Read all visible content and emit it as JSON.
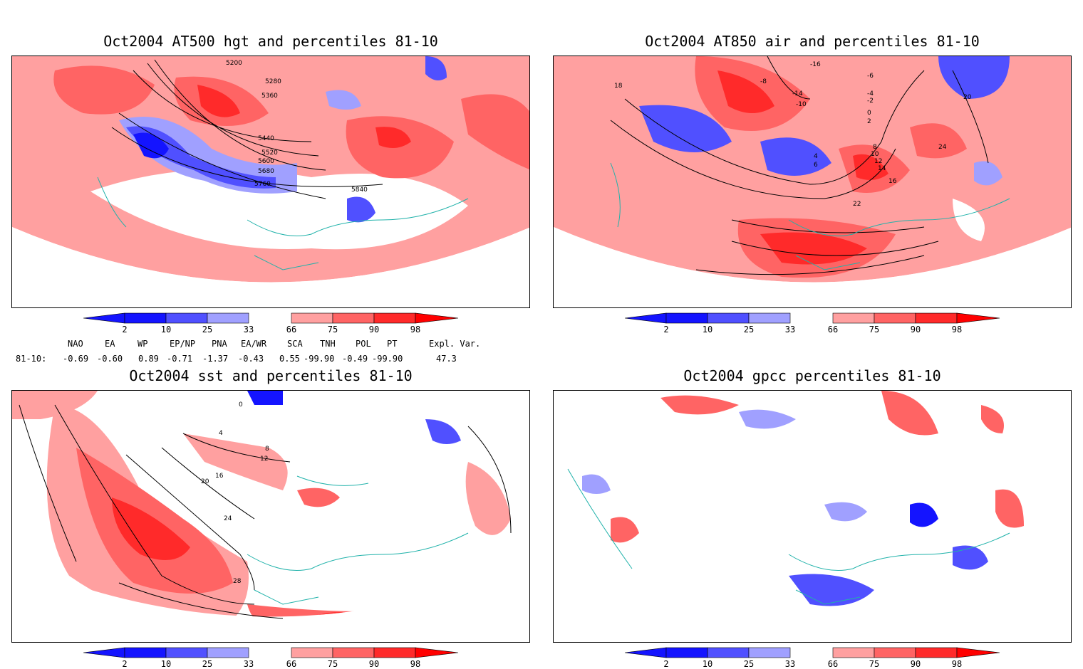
{
  "panels": [
    {
      "id": "p1",
      "title": "Oct2004 AT500 hgt and percentiles 81-10",
      "contour_labels": [
        "5200",
        "5280",
        "5360",
        "5440",
        "5520",
        "5600",
        "5680",
        "5760",
        "5840"
      ]
    },
    {
      "id": "p2",
      "title": "Oct2004 AT850 air and percentiles 81-10",
      "contour_labels": [
        "-16",
        "-8",
        "-6",
        "-4",
        "-2",
        "0",
        "2",
        "4",
        "6",
        "8",
        "10",
        "12",
        "14",
        "16",
        "18",
        "20",
        "22",
        "24",
        "-10",
        "-14"
      ]
    },
    {
      "id": "p3",
      "title": "Oct2004 sst and percentiles 81-10",
      "contour_labels": [
        "0",
        "4",
        "8",
        "12",
        "16",
        "20",
        "24",
        "28"
      ]
    },
    {
      "id": "p4",
      "title": "Oct2004 gpcc percentiles 81-10",
      "contour_labels": []
    }
  ],
  "colorbar": {
    "ticks": [
      "2",
      "10",
      "25",
      "33",
      "66",
      "75",
      "90",
      "98"
    ],
    "colors": {
      "blue_dark": "#1414ff",
      "blue_mid": "#5050ff",
      "blue_light": "#a0a0ff",
      "red_light": "#ffa0a0",
      "red_mid": "#ff6464",
      "red_dark": "#ff2a2a",
      "red_tip": "#ff0000"
    }
  },
  "indices": {
    "headers": [
      "NAO",
      "EA",
      "WP",
      "EP/NP",
      "PNA",
      "EA/WR",
      "SCA",
      "TNH",
      "POL",
      "PT",
      "Expl. Var."
    ],
    "row_label": "81-10:",
    "values": [
      "-0.69",
      "-0.60",
      "0.89",
      "-0.71",
      "-1.37",
      "-0.43",
      "0.55",
      "-99.90",
      "-0.49",
      "-99.90",
      "47.3"
    ]
  }
}
